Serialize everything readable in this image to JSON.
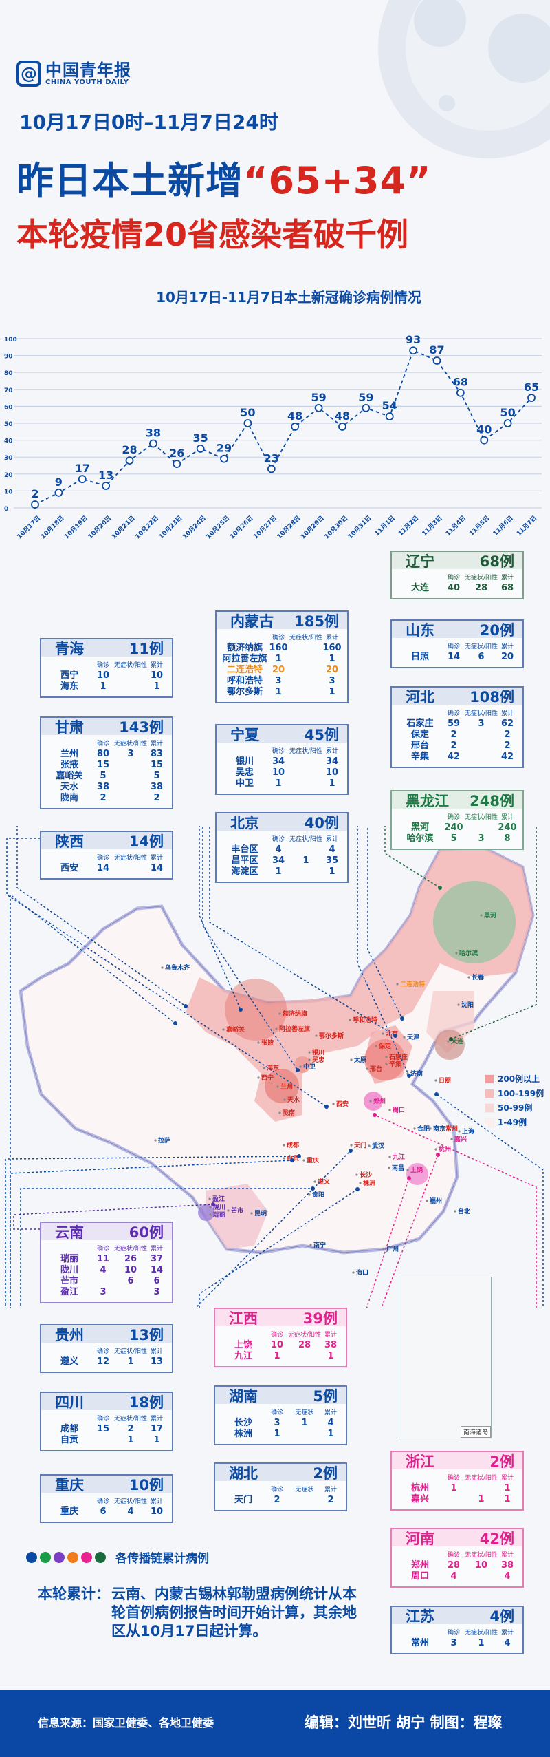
{
  "header": {
    "logo_cn": "中国青年报",
    "logo_en": "CHINA YOUTH DAILY",
    "date_range": "10月17日0时–11月7日24时",
    "headline_prefix": "昨日本土新增",
    "headline_numbers": "“65+34”",
    "subheadline": "本轮疫情20省感染者破千例"
  },
  "chart_data": {
    "type": "line",
    "title": "10月17日-11月7日本土新冠确诊病例情况",
    "categories": [
      "10月17日",
      "10月18日",
      "10月19日",
      "10月20日",
      "10月21日",
      "10月22日",
      "10月23日",
      "10月24日",
      "10月25日",
      "10月26日",
      "10月27日",
      "10月28日",
      "10月29日",
      "10月30日",
      "10月31日",
      "11月1日",
      "11月2日",
      "11月3日",
      "11月4日",
      "11月5日",
      "11月6日",
      "11月7日"
    ],
    "values": [
      2,
      9,
      17,
      13,
      28,
      38,
      26,
      35,
      29,
      50,
      23,
      48,
      59,
      48,
      59,
      54,
      93,
      87,
      68,
      40,
      50,
      65
    ],
    "yticks": [
      0,
      10,
      20,
      30,
      40,
      50,
      60,
      70,
      80,
      90,
      100
    ],
    "ylim": [
      0,
      100
    ],
    "grid": true,
    "line_style": "dashed",
    "color": "#0b4aa2"
  },
  "column_headers": {
    "confirmed": "确诊",
    "asymptomatic": "无症状/阳性",
    "asymptomatic_short": "无症状",
    "total": "累计"
  },
  "provinces": [
    {
      "key": "liaoning",
      "name": "辽宁",
      "total": "68例",
      "theme": "dkgreen",
      "rows": [
        [
          "大连",
          "40",
          "28",
          "68"
        ]
      ]
    },
    {
      "key": "shandong",
      "name": "山东",
      "total": "20例",
      "theme": "blue",
      "rows": [
        [
          "日照",
          "14",
          "6",
          "20"
        ]
      ]
    },
    {
      "key": "hebei",
      "name": "河北",
      "total": "108例",
      "theme": "blue",
      "rows": [
        [
          "石家庄",
          "59",
          "3",
          "62"
        ],
        [
          "保定",
          "2",
          "",
          "2"
        ],
        [
          "邢台",
          "2",
          "",
          "2"
        ],
        [
          "辛集",
          "42",
          "",
          "42"
        ]
      ]
    },
    {
      "key": "heilongjiang",
      "name": "黑龙江",
      "total": "248例",
      "theme": "green",
      "rows": [
        [
          "黑河",
          "240",
          "",
          "240"
        ],
        [
          "哈尔滨",
          "5",
          "3",
          "8"
        ]
      ]
    },
    {
      "key": "neimenggu",
      "name": "内蒙古",
      "total": "185例",
      "theme": "blue",
      "rows": [
        [
          "额济纳旗",
          "160",
          "",
          "160"
        ],
        [
          "阿拉善左旗",
          "1",
          "",
          "1"
        ],
        [
          "二连浩特",
          "20",
          "",
          "20",
          "highlight"
        ],
        [
          "呼和浩特",
          "3",
          "",
          "3"
        ],
        [
          "鄂尔多斯",
          "1",
          "",
          "1"
        ]
      ]
    },
    {
      "key": "ningxia",
      "name": "宁夏",
      "total": "45例",
      "theme": "blue",
      "rows": [
        [
          "银川",
          "34",
          "",
          "34"
        ],
        [
          "吴忠",
          "10",
          "",
          "10"
        ],
        [
          "中卫",
          "1",
          "",
          "1"
        ]
      ]
    },
    {
      "key": "beijing",
      "name": "北京",
      "total": "40例",
      "theme": "blue",
      "rows": [
        [
          "丰台区",
          "4",
          "",
          "4"
        ],
        [
          "昌平区",
          "34",
          "1",
          "35"
        ],
        [
          "海淀区",
          "1",
          "",
          "1"
        ]
      ]
    },
    {
      "key": "qinghai",
      "name": "青海",
      "total": "11例",
      "theme": "blue",
      "rows": [
        [
          "西宁",
          "10",
          "",
          "10"
        ],
        [
          "海东",
          "1",
          "",
          "1"
        ]
      ]
    },
    {
      "key": "gansu",
      "name": "甘肃",
      "total": "143例",
      "theme": "blue",
      "rows": [
        [
          "兰州",
          "80",
          "3",
          "83"
        ],
        [
          "张掖",
          "15",
          "",
          "15"
        ],
        [
          "嘉峪关",
          "5",
          "",
          "5"
        ],
        [
          "天水",
          "38",
          "",
          "38"
        ],
        [
          "陇南",
          "2",
          "",
          "2"
        ]
      ]
    },
    {
      "key": "shaanxi",
      "name": "陕西",
      "total": "14例",
      "theme": "blue",
      "rows": [
        [
          "西安",
          "14",
          "",
          "14"
        ]
      ]
    },
    {
      "key": "yunnan",
      "name": "云南",
      "total": "60例",
      "theme": "purple",
      "rows": [
        [
          "瑞丽",
          "11",
          "26",
          "37"
        ],
        [
          "陇川",
          "4",
          "10",
          "14"
        ],
        [
          "芒市",
          "",
          "6",
          "6"
        ],
        [
          "盈江",
          "3",
          "",
          "3"
        ]
      ]
    },
    {
      "key": "guizhou",
      "name": "贵州",
      "total": "13例",
      "theme": "blue",
      "rows": [
        [
          "遵义",
          "12",
          "1",
          "13"
        ]
      ]
    },
    {
      "key": "sichuan",
      "name": "四川",
      "total": "18例",
      "theme": "blue",
      "rows": [
        [
          "成都",
          "15",
          "2",
          "17"
        ],
        [
          "自贡",
          "",
          "1",
          "1"
        ]
      ]
    },
    {
      "key": "chongqing",
      "name": "重庆",
      "total": "10例",
      "theme": "blue",
      "rows": [
        [
          "重庆",
          "6",
          "4",
          "10"
        ]
      ]
    },
    {
      "key": "jiangxi",
      "name": "江西",
      "total": "39例",
      "theme": "pink",
      "rows": [
        [
          "上饶",
          "10",
          "28",
          "38"
        ],
        [
          "九江",
          "1",
          "",
          "1"
        ]
      ]
    },
    {
      "key": "hunan",
      "name": "湖南",
      "total": "5例",
      "theme": "blue",
      "short_header": true,
      "rows": [
        [
          "长沙",
          "3",
          "1",
          "4"
        ],
        [
          "株洲",
          "1",
          "",
          "1"
        ]
      ]
    },
    {
      "key": "hubei",
      "name": "湖北",
      "total": "2例",
      "theme": "blue",
      "short_header": true,
      "rows": [
        [
          "天门",
          "2",
          "",
          "2"
        ]
      ]
    },
    {
      "key": "zhejiang",
      "name": "浙江",
      "total": "2例",
      "theme": "pink",
      "rows": [
        [
          "杭州",
          "1",
          "",
          "1"
        ],
        [
          "嘉兴",
          "",
          "1",
          "1"
        ]
      ]
    },
    {
      "key": "henan",
      "name": "河南",
      "total": "42例",
      "theme": "pink",
      "rows": [
        [
          "郑州",
          "28",
          "10",
          "38"
        ],
        [
          "周口",
          "4",
          "",
          "4"
        ]
      ]
    },
    {
      "key": "jiangsu",
      "name": "江苏",
      "total": "4例",
      "theme": "blue",
      "rows": [
        [
          "常州",
          "3",
          "1",
          "4"
        ]
      ]
    }
  ],
  "map": {
    "legend": [
      {
        "label": "200例以上",
        "color": "#f19a9a"
      },
      {
        "label": "100-199例",
        "color": "#f6bcbc"
      },
      {
        "label": "50-99例",
        "color": "#f9d6d6"
      },
      {
        "label": "1-49例",
        "color": "#fbefef"
      }
    ],
    "inset_label": "南海诸岛",
    "cities": [
      {
        "name": "乌鲁木齐",
        "tone": "blue"
      },
      {
        "name": "拉萨",
        "tone": "blue"
      },
      {
        "name": "额济纳旗",
        "tone": "red"
      },
      {
        "name": "阿拉善左旗",
        "tone": "red"
      },
      {
        "name": "嘉峪关",
        "tone": "red"
      },
      {
        "name": "张掖",
        "tone": "red"
      },
      {
        "name": "呼和浩特",
        "tone": "red"
      },
      {
        "name": "鄂尔多斯",
        "tone": "red"
      },
      {
        "name": "银川",
        "tone": "red"
      },
      {
        "name": "吴忠",
        "tone": "red"
      },
      {
        "name": "中卫",
        "tone": "blue"
      },
      {
        "name": "海东",
        "tone": "red"
      },
      {
        "name": "西宁",
        "tone": "red"
      },
      {
        "name": "兰州",
        "tone": "red"
      },
      {
        "name": "天水",
        "tone": "red"
      },
      {
        "name": "陇南",
        "tone": "red"
      },
      {
        "name": "西安",
        "tone": "red"
      },
      {
        "name": "二连浩特",
        "tone": "orange"
      },
      {
        "name": "北京",
        "tone": "red"
      },
      {
        "name": "天津",
        "tone": "blue"
      },
      {
        "name": "保定",
        "tone": "red"
      },
      {
        "name": "石家庄",
        "tone": "red"
      },
      {
        "name": "辛集",
        "tone": "red"
      },
      {
        "name": "太原",
        "tone": "blue"
      },
      {
        "name": "邢台",
        "tone": "red"
      },
      {
        "name": "济南",
        "tone": "blue"
      },
      {
        "name": "日照",
        "tone": "red"
      },
      {
        "name": "郑州",
        "tone": "pink"
      },
      {
        "name": "周口",
        "tone": "pink"
      },
      {
        "name": "哈尔滨",
        "tone": "green"
      },
      {
        "name": "黑河",
        "tone": "green"
      },
      {
        "name": "长春",
        "tone": "blue"
      },
      {
        "name": "沈阳",
        "tone": "blue"
      },
      {
        "name": "大连",
        "tone": "green"
      },
      {
        "name": "合肥",
        "tone": "blue"
      },
      {
        "name": "南京",
        "tone": "blue"
      },
      {
        "name": "常州",
        "tone": "red"
      },
      {
        "name": "上海",
        "tone": "blue"
      },
      {
        "name": "嘉兴",
        "tone": "pink"
      },
      {
        "name": "杭州",
        "tone": "pink"
      },
      {
        "name": "成都",
        "tone": "red"
      },
      {
        "name": "自贡",
        "tone": "red"
      },
      {
        "name": "重庆",
        "tone": "red"
      },
      {
        "name": "天门",
        "tone": "red"
      },
      {
        "name": "武汉",
        "tone": "blue"
      },
      {
        "name": "九江",
        "tone": "pink"
      },
      {
        "name": "南昌",
        "tone": "blue"
      },
      {
        "name": "上饶",
        "tone": "pink"
      },
      {
        "name": "长沙",
        "tone": "red"
      },
      {
        "name": "株洲",
        "tone": "red"
      },
      {
        "name": "遵义",
        "tone": "red"
      },
      {
        "name": "贵阳",
        "tone": "blue"
      },
      {
        "name": "福州",
        "tone": "blue"
      },
      {
        "name": "昆明",
        "tone": "blue"
      },
      {
        "name": "盈江",
        "tone": "purple"
      },
      {
        "name": "陇川",
        "tone": "purple"
      },
      {
        "name": "芒市",
        "tone": "purple"
      },
      {
        "name": "瑞丽",
        "tone": "purple"
      },
      {
        "name": "台北",
        "tone": "blue"
      },
      {
        "name": "广州",
        "tone": "blue"
      },
      {
        "name": "南宁",
        "tone": "blue"
      },
      {
        "name": "海口",
        "tone": "blue"
      }
    ]
  },
  "chain_legend": {
    "label": "各传播链累计病例",
    "colors": [
      "#0b4aa2",
      "#1a9b48",
      "#7b3fc4",
      "#f07c1e",
      "#e8228f",
      "#1b6a3c"
    ]
  },
  "note": {
    "label": "本轮累计：",
    "text": "云南、内蒙古锡林郭勒盟病例统计从本轮首例病例报告时间开始计算，其余地区从10月17日起计算。"
  },
  "footer": {
    "source": "信息来源：国家卫健委、各地卫健委",
    "editors": "编辑：刘世昕  胡宁    制图：程璨"
  }
}
